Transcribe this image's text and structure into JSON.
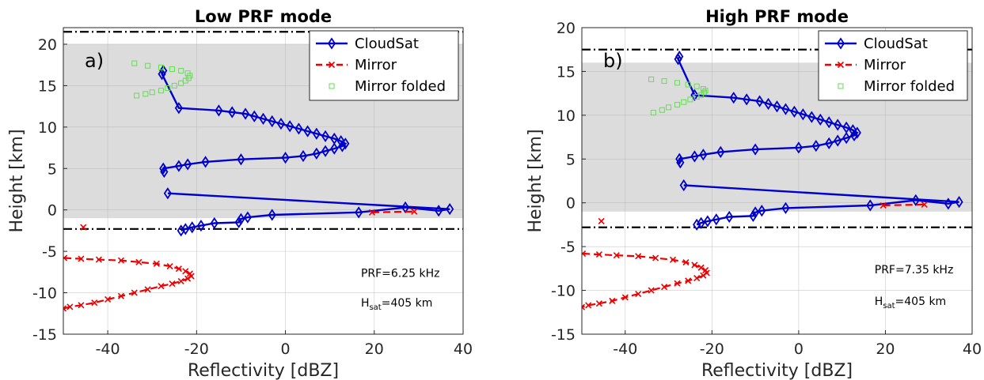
{
  "chart_data": [
    {
      "type": "line",
      "title": "Low PRF mode",
      "panel_label": "a)",
      "xlabel": "Reflectivity [dBZ]",
      "ylabel": "Height [km]",
      "xlim": [
        -50,
        40
      ],
      "ylim": [
        -15,
        22
      ],
      "xticks": [
        -40,
        -20,
        0,
        20,
        40
      ],
      "yticks": [
        -15,
        -10,
        -5,
        0,
        5,
        10,
        15,
        20
      ],
      "grid": true,
      "legend_position": "top-right",
      "shaded_band": [
        -1,
        20
      ],
      "hlines": [
        21.5,
        -2.3
      ],
      "annotations": [
        "PRF=6.25 kHz",
        "H",
        "sat",
        "=405 km"
      ],
      "series": [
        {
          "name": "CloudSat",
          "color": "#0000cc",
          "marker": "diamond",
          "style": "solid",
          "points": [
            [
              -27.5,
              16.8
            ],
            [
              -27.8,
              16.4
            ],
            [
              -24,
              12.3
            ],
            [
              -15,
              12
            ],
            [
              -12,
              11.8
            ],
            [
              -9,
              11.6
            ],
            [
              -7,
              11.3
            ],
            [
              -5,
              11
            ],
            [
              -3,
              10.7
            ],
            [
              -1,
              10.4
            ],
            [
              1,
              10.1
            ],
            [
              3,
              9.8
            ],
            [
              5,
              9.5
            ],
            [
              7,
              9.2
            ],
            [
              9,
              8.9
            ],
            [
              11,
              8.6
            ],
            [
              12.5,
              8.3
            ],
            [
              13.5,
              8
            ],
            [
              12.8,
              7.7
            ],
            [
              11,
              7.4
            ],
            [
              9,
              7.1
            ],
            [
              7,
              6.8
            ],
            [
              4,
              6.5
            ],
            [
              0,
              6.3
            ],
            [
              -10,
              6.1
            ],
            [
              -18,
              5.8
            ],
            [
              -22,
              5.5
            ],
            [
              -24,
              5.3
            ],
            [
              -27.5,
              5
            ],
            [
              -27.3,
              4.6
            ]
          ]
        },
        {
          "name": "",
          "color": "#0000cc",
          "marker": "diamond",
          "style": "solid",
          "points": [
            [
              -26.5,
              2
            ],
            [
              37,
              0.1
            ],
            [
              34.5,
              -0.1
            ],
            [
              27,
              0.3
            ],
            [
              16.5,
              -0.3
            ],
            [
              -3,
              -0.6
            ],
            [
              -8.5,
              -0.9
            ],
            [
              -10,
              -1.1
            ],
            [
              -10.5,
              -1.5
            ],
            [
              -16,
              -1.6
            ],
            [
              -19,
              -1.9
            ],
            [
              -21,
              -2.1
            ],
            [
              -22.5,
              -2.3
            ],
            [
              -23.5,
              -2.5
            ]
          ]
        },
        {
          "name": "Mirror",
          "color": "#ee0000",
          "marker": "x",
          "style": "dashed",
          "points": [
            [
              -45.5,
              -2.1
            ],
            [
              19.5,
              -0.3
            ],
            [
              29,
              -0.2
            ],
            [
              -49.8,
              -5.8
            ],
            [
              -46,
              -5.9
            ],
            [
              -42,
              -6
            ],
            [
              -37,
              -6.1
            ],
            [
              -33,
              -6.3
            ],
            [
              -29,
              -6.5
            ],
            [
              -26,
              -6.8
            ],
            [
              -24,
              -7.1
            ],
            [
              -22.5,
              -7.4
            ],
            [
              -21.5,
              -7.7
            ],
            [
              -21.2,
              -8
            ],
            [
              -22,
              -8.3
            ],
            [
              -23.5,
              -8.6
            ],
            [
              -25.5,
              -8.9
            ],
            [
              -28,
              -9.2
            ],
            [
              -31,
              -9.6
            ],
            [
              -34,
              -10
            ],
            [
              -37,
              -10.4
            ],
            [
              -40,
              -10.8
            ],
            [
              -43,
              -11.2
            ],
            [
              -46,
              -11.5
            ],
            [
              -48.5,
              -11.7
            ],
            [
              -50,
              -11.9
            ]
          ]
        },
        {
          "name": "Mirror folded",
          "color": "#66dd55",
          "marker": "square",
          "style": "none",
          "points": [
            [
              -34,
              17.7
            ],
            [
              -31,
              17.4
            ],
            [
              -28,
              17.2
            ],
            [
              -25.5,
              17
            ],
            [
              -23.5,
              16.8
            ],
            [
              -22,
              16.5
            ],
            [
              -21.5,
              16.2
            ],
            [
              -21.8,
              15.9
            ],
            [
              -22.5,
              15.6
            ],
            [
              -23.5,
              15.3
            ],
            [
              -25,
              15
            ],
            [
              -26.5,
              14.7
            ],
            [
              -28,
              14.4
            ],
            [
              -30,
              14.2
            ],
            [
              -31.5,
              14
            ],
            [
              -33.5,
              13.8
            ]
          ]
        }
      ]
    },
    {
      "type": "line",
      "title": "High PRF mode",
      "panel_label": "b)",
      "xlabel": "Reflectivity [dBZ]",
      "ylabel": "Height [km]",
      "xlim": [
        -50,
        40
      ],
      "ylim": [
        -15,
        20
      ],
      "xticks": [
        -40,
        -20,
        0,
        20,
        40
      ],
      "yticks": [
        -15,
        -10,
        -5,
        0,
        5,
        10,
        15,
        20
      ],
      "grid": true,
      "legend_position": "top-right",
      "shaded_band": [
        -1,
        16
      ],
      "hlines": [
        17.5,
        -2.8
      ],
      "annotations": [
        "PRF=7.35 kHz",
        "H",
        "sat",
        "=405 km"
      ],
      "series": [
        {
          "name": "CloudSat",
          "color": "#0000cc",
          "marker": "diamond",
          "style": "solid",
          "points": [
            [
              -27.5,
              16.7
            ],
            [
              -27.8,
              16.4
            ],
            [
              -24,
              12.3
            ],
            [
              -15,
              12
            ],
            [
              -12,
              11.8
            ],
            [
              -9,
              11.6
            ],
            [
              -7,
              11.3
            ],
            [
              -5,
              11
            ],
            [
              -3,
              10.7
            ],
            [
              -1,
              10.4
            ],
            [
              1,
              10.1
            ],
            [
              3,
              9.8
            ],
            [
              5,
              9.5
            ],
            [
              7,
              9.2
            ],
            [
              9,
              8.9
            ],
            [
              11,
              8.6
            ],
            [
              12.5,
              8.3
            ],
            [
              13.5,
              8
            ],
            [
              12.8,
              7.7
            ],
            [
              11,
              7.4
            ],
            [
              9,
              7.1
            ],
            [
              7,
              6.8
            ],
            [
              4,
              6.5
            ],
            [
              0,
              6.3
            ],
            [
              -10,
              6.1
            ],
            [
              -18,
              5.8
            ],
            [
              -22,
              5.5
            ],
            [
              -24,
              5.3
            ],
            [
              -27.5,
              5
            ],
            [
              -27.3,
              4.6
            ]
          ]
        },
        {
          "name": "",
          "color": "#0000cc",
          "marker": "diamond",
          "style": "solid",
          "points": [
            [
              -26.5,
              2
            ],
            [
              37,
              0.1
            ],
            [
              34.5,
              -0.1
            ],
            [
              27,
              0.3
            ],
            [
              16.5,
              -0.3
            ],
            [
              -3,
              -0.6
            ],
            [
              -8.5,
              -0.9
            ],
            [
              -10,
              -1.1
            ],
            [
              -10.5,
              -1.5
            ],
            [
              -16,
              -1.6
            ],
            [
              -19,
              -1.9
            ],
            [
              -21,
              -2.1
            ],
            [
              -22.5,
              -2.3
            ],
            [
              -23.5,
              -2.5
            ]
          ]
        },
        {
          "name": "Mirror",
          "color": "#ee0000",
          "marker": "x",
          "style": "dashed",
          "points": [
            [
              -45.5,
              -2.1
            ],
            [
              19.5,
              -0.3
            ],
            [
              29,
              -0.2
            ],
            [
              -49.8,
              -5.8
            ],
            [
              -46,
              -5.9
            ],
            [
              -42,
              -6
            ],
            [
              -37,
              -6.1
            ],
            [
              -33,
              -6.3
            ],
            [
              -29,
              -6.5
            ],
            [
              -26,
              -6.8
            ],
            [
              -24,
              -7.1
            ],
            [
              -22.5,
              -7.4
            ],
            [
              -21.5,
              -7.7
            ],
            [
              -21.2,
              -8
            ],
            [
              -22,
              -8.3
            ],
            [
              -23.5,
              -8.6
            ],
            [
              -25.5,
              -8.9
            ],
            [
              -28,
              -9.2
            ],
            [
              -31,
              -9.6
            ],
            [
              -34,
              -10
            ],
            [
              -37,
              -10.4
            ],
            [
              -40,
              -10.8
            ],
            [
              -43,
              -11.2
            ],
            [
              -46,
              -11.5
            ],
            [
              -48.5,
              -11.7
            ],
            [
              -50,
              -11.9
            ]
          ]
        },
        {
          "name": "Mirror folded",
          "color": "#66dd55",
          "marker": "square",
          "style": "none",
          "points": [
            [
              -34,
              14.1
            ],
            [
              -31,
              13.9
            ],
            [
              -28,
              13.7
            ],
            [
              -25.5,
              13.5
            ],
            [
              -23.5,
              13.3
            ],
            [
              -22,
              13
            ],
            [
              -21.5,
              12.8
            ],
            [
              -21.8,
              12.6
            ],
            [
              -22.5,
              12.3
            ],
            [
              -23.5,
              12.1
            ],
            [
              -25,
              11.8
            ],
            [
              -26.5,
              11.5
            ],
            [
              -28,
              11.2
            ],
            [
              -30,
              10.9
            ],
            [
              -31.5,
              10.6
            ],
            [
              -33.5,
              10.3
            ]
          ]
        }
      ]
    }
  ]
}
